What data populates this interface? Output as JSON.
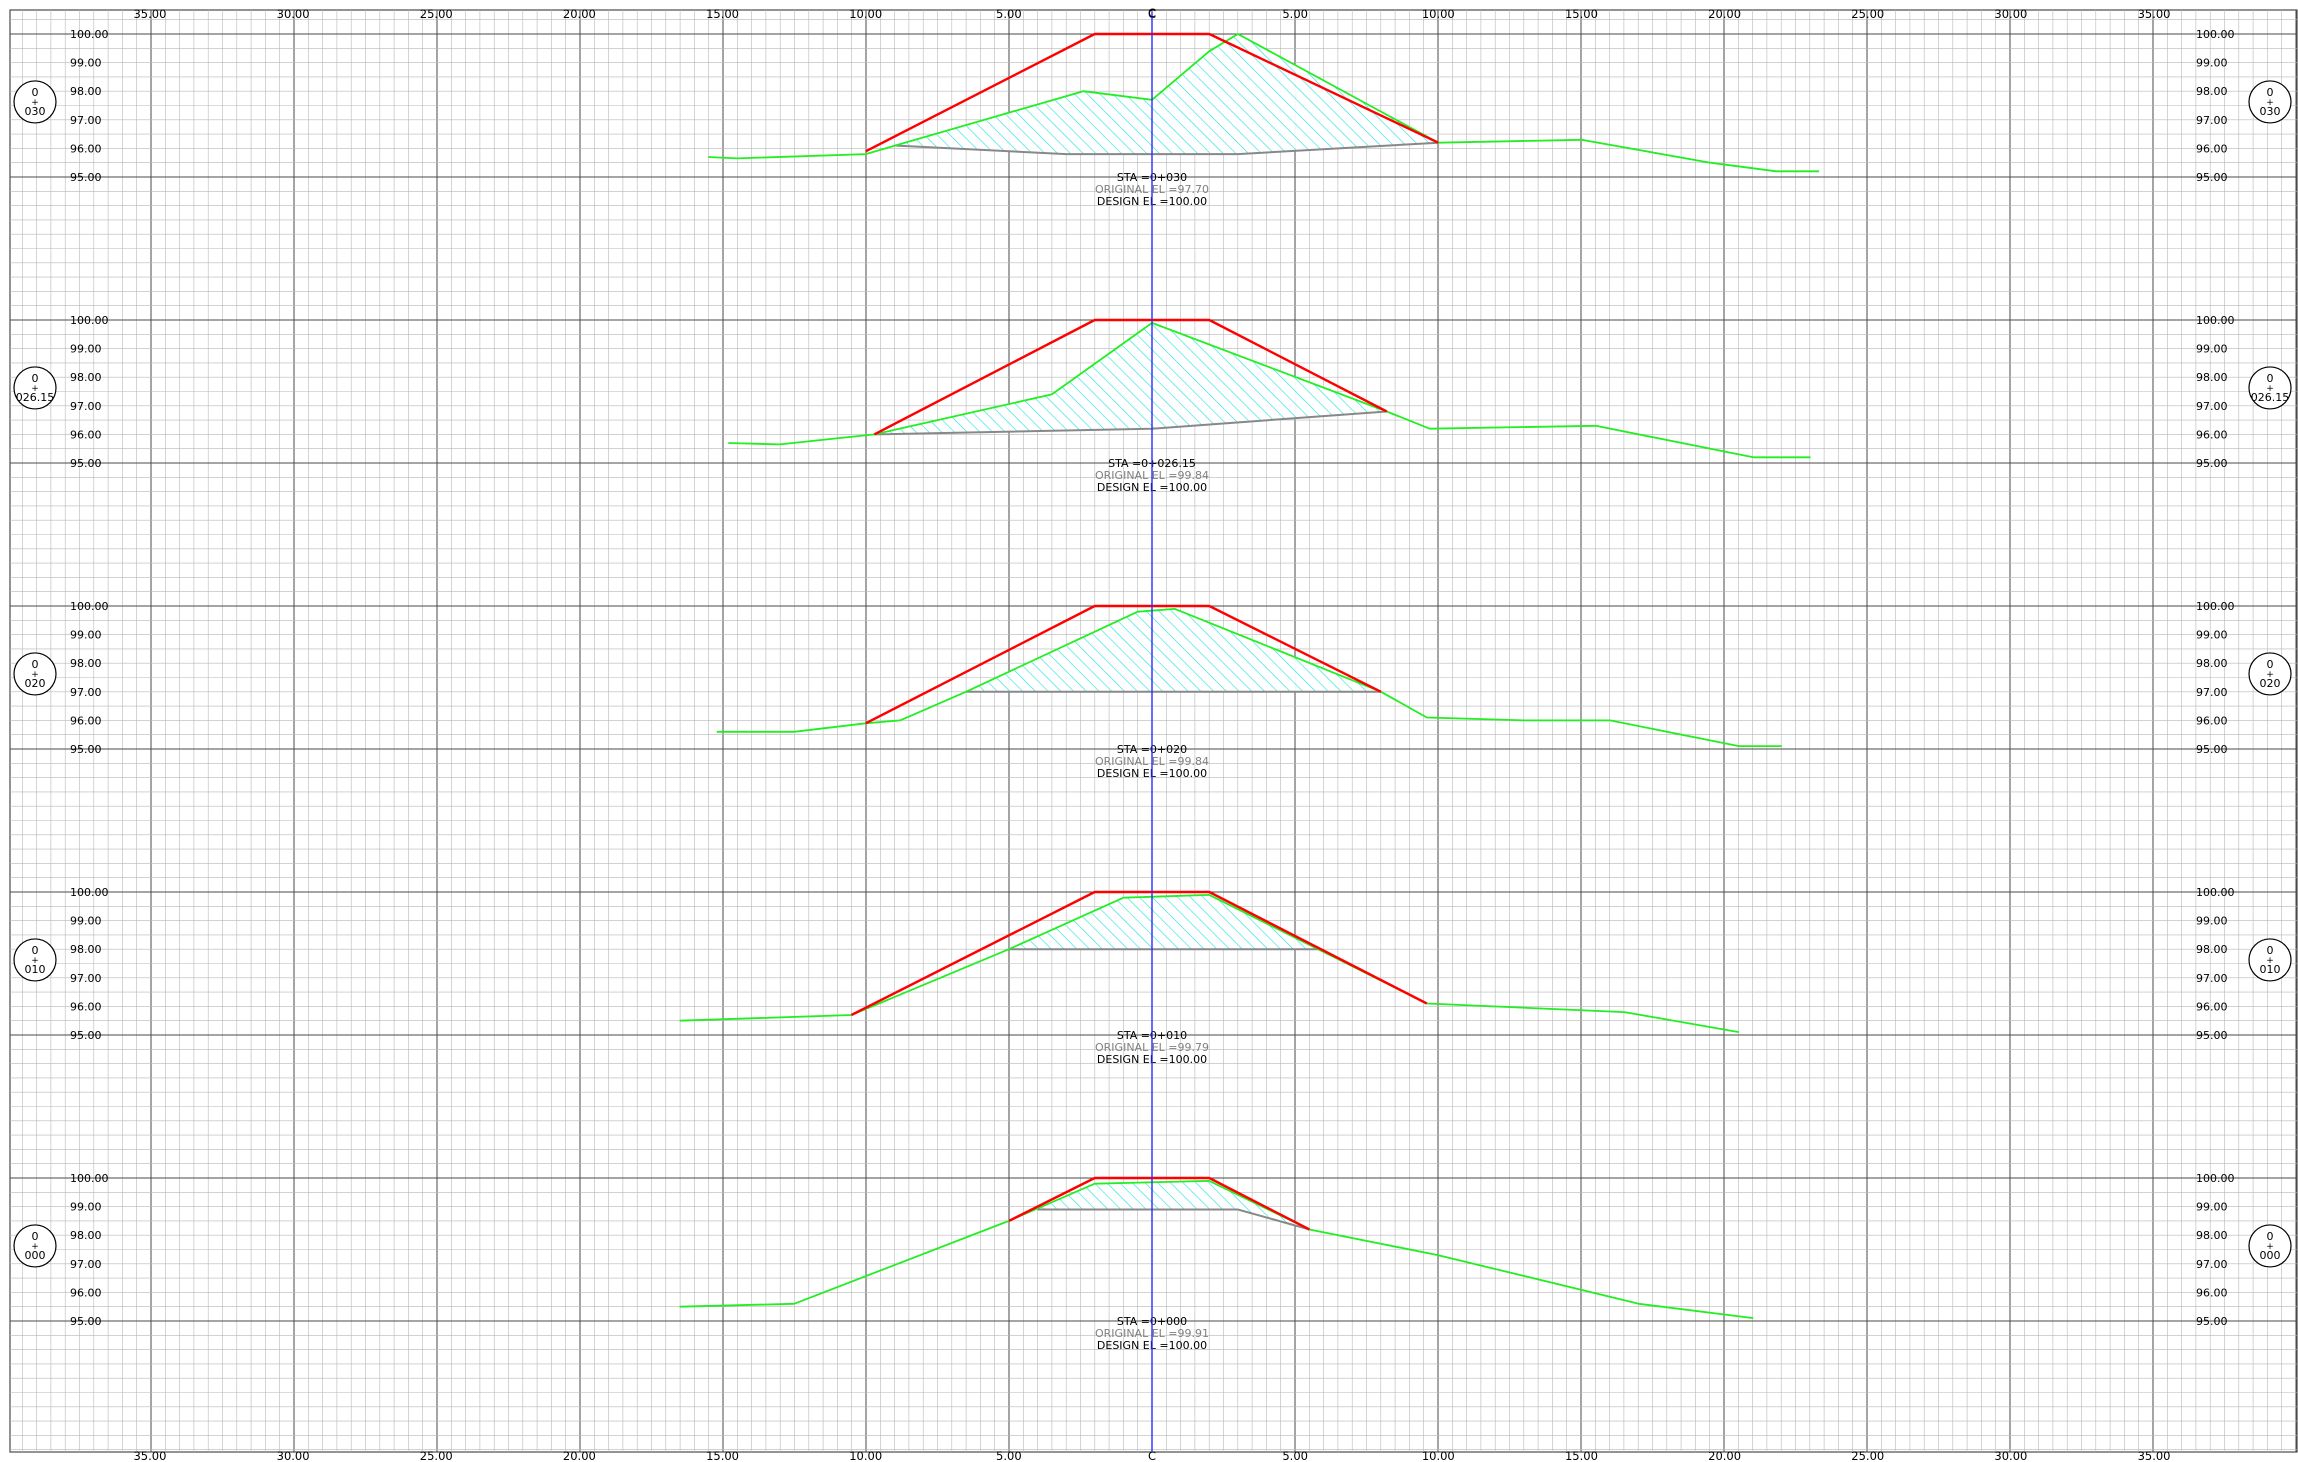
{
  "drawing": {
    "centerline_label": "C",
    "offset_labels": [
      "35.00",
      "30.00",
      "25.00",
      "20.00",
      "15.00",
      "10.00",
      "5.00",
      "C",
      "5.00",
      "10.00",
      "15.00",
      "20.00",
      "25.00",
      "30.00",
      "35.00"
    ],
    "elevation_labels": [
      "100.00",
      "99.00",
      "98.00",
      "97.00",
      "96.00",
      "95.00"
    ],
    "colors": {
      "grid_minor": "#b8b8b8",
      "grid_major": "#4a4a4a",
      "centerline": "#2b2bff",
      "design": "#ff0000",
      "existing_ground": "#22ee22",
      "fill_hatch": "#14e0e0",
      "bottom": "#888888",
      "text": "#000000",
      "original_el_text": "#808080"
    }
  },
  "sections": [
    {
      "marker_top": "0",
      "marker_mid": "+",
      "marker_bottom": "030",
      "sta_label": "STA  =0+030",
      "original_label": "ORIGINAL  EL  =97.70",
      "design_label": "DESIGN  EL  =100.00",
      "design_elevation": 100.0,
      "design_profile": [
        [
          -10.0,
          95.9
        ],
        [
          -2.0,
          100.0
        ],
        [
          2.0,
          100.0
        ],
        [
          10.0,
          96.2
        ]
      ],
      "ground_profile": [
        [
          -15.5,
          95.7
        ],
        [
          -14.5,
          95.65
        ],
        [
          -10.0,
          95.8
        ],
        [
          -2.4,
          98.0
        ],
        [
          0.0,
          97.7
        ],
        [
          2.0,
          99.4
        ],
        [
          3.0,
          100.0
        ],
        [
          10.0,
          96.2
        ],
        [
          15.0,
          96.3
        ],
        [
          19.5,
          95.5
        ],
        [
          21.8,
          95.2
        ],
        [
          23.3,
          95.2
        ]
      ],
      "fill_bottom": [
        [
          -9.0,
          96.1
        ],
        [
          -3.0,
          95.8
        ],
        [
          3.0,
          95.8
        ],
        [
          10.0,
          96.2
        ]
      ],
      "fill_top": [
        [
          -10.0,
          95.9
        ],
        [
          -9.0,
          96.1
        ],
        [
          -2.4,
          98.0
        ],
        [
          0.0,
          97.7
        ],
        [
          2.0,
          99.4
        ],
        [
          3.0,
          100.0
        ],
        [
          10.0,
          96.2
        ]
      ]
    },
    {
      "marker_top": "0",
      "marker_mid": "+",
      "marker_bottom": "026.15",
      "sta_label": "STA  =0+026.15",
      "original_label": "ORIGINAL  EL  =99.84",
      "design_label": "DESIGN  EL  =100.00",
      "design_elevation": 100.0,
      "design_profile": [
        [
          -9.7,
          96.0
        ],
        [
          -2.0,
          100.0
        ],
        [
          2.0,
          100.0
        ],
        [
          8.2,
          96.8
        ]
      ],
      "ground_profile": [
        [
          -14.8,
          95.7
        ],
        [
          -13.0,
          95.65
        ],
        [
          -9.7,
          96.0
        ],
        [
          -3.5,
          97.4
        ],
        [
          0.0,
          99.9
        ],
        [
          8.2,
          96.8
        ],
        [
          9.7,
          96.2
        ],
        [
          15.5,
          96.3
        ],
        [
          21.0,
          95.2
        ],
        [
          23.0,
          95.2
        ]
      ],
      "fill_bottom": [
        [
          -9.7,
          96.0
        ],
        [
          0.0,
          96.2
        ],
        [
          8.2,
          96.8
        ]
      ],
      "fill_top": [
        [
          -9.7,
          96.0
        ],
        [
          -3.5,
          97.4
        ],
        [
          0.0,
          99.9
        ],
        [
          8.2,
          96.8
        ]
      ]
    },
    {
      "marker_top": "0",
      "marker_mid": "+",
      "marker_bottom": "020",
      "sta_label": "STA  =0+020",
      "original_label": "ORIGINAL  EL  =99.84",
      "design_label": "DESIGN  EL  =100.00",
      "design_elevation": 100.0,
      "design_profile": [
        [
          -10.0,
          95.9
        ],
        [
          -2.0,
          100.0
        ],
        [
          2.0,
          100.0
        ],
        [
          8.0,
          97.0
        ]
      ],
      "ground_profile": [
        [
          -15.2,
          95.6
        ],
        [
          -12.5,
          95.6
        ],
        [
          -10.0,
          95.9
        ],
        [
          -8.8,
          96.0
        ],
        [
          -6.5,
          97.0
        ],
        [
          -0.5,
          99.8
        ],
        [
          0.8,
          99.9
        ],
        [
          8.0,
          97.0
        ],
        [
          9.6,
          96.1
        ],
        [
          13.0,
          96.0
        ],
        [
          16.0,
          96.0
        ],
        [
          20.5,
          95.1
        ],
        [
          22.0,
          95.1
        ]
      ],
      "fill_bottom": [
        [
          -6.5,
          97.0
        ],
        [
          8.0,
          97.0
        ]
      ],
      "fill_top": [
        [
          -6.5,
          97.0
        ],
        [
          -0.5,
          99.8
        ],
        [
          0.8,
          99.9
        ],
        [
          8.0,
          97.0
        ]
      ]
    },
    {
      "marker_top": "0",
      "marker_mid": "+",
      "marker_bottom": "010",
      "sta_label": "STA  =0+010",
      "original_label": "ORIGINAL  EL  =99.79",
      "design_label": "DESIGN  EL  =100.00",
      "design_elevation": 100.0,
      "design_profile": [
        [
          -10.5,
          95.7
        ],
        [
          -2.0,
          100.0
        ],
        [
          2.0,
          100.0
        ],
        [
          9.6,
          96.1
        ]
      ],
      "ground_profile": [
        [
          -16.5,
          95.5
        ],
        [
          -10.5,
          95.7
        ],
        [
          -5.0,
          98.0
        ],
        [
          -1.0,
          99.8
        ],
        [
          2.0,
          99.9
        ],
        [
          5.8,
          98.0
        ],
        [
          9.6,
          96.1
        ],
        [
          16.5,
          95.8
        ],
        [
          20.5,
          95.1
        ]
      ],
      "fill_bottom": [
        [
          -5.0,
          98.0
        ],
        [
          5.8,
          98.0
        ]
      ],
      "fill_top": [
        [
          -5.0,
          98.0
        ],
        [
          -1.0,
          99.8
        ],
        [
          2.0,
          99.9
        ],
        [
          5.8,
          98.0
        ]
      ]
    },
    {
      "marker_top": "0",
      "marker_mid": "+",
      "marker_bottom": "000",
      "sta_label": "STA  =0+000",
      "original_label": "ORIGINAL  EL  =99.91",
      "design_label": "DESIGN  EL  =100.00",
      "design_elevation": 100.0,
      "design_profile": [
        [
          -5.0,
          98.5
        ],
        [
          -2.0,
          100.0
        ],
        [
          2.0,
          100.0
        ],
        [
          5.5,
          98.2
        ]
      ],
      "ground_profile": [
        [
          -16.5,
          95.5
        ],
        [
          -12.5,
          95.6
        ],
        [
          -5.0,
          98.5
        ],
        [
          -2.0,
          99.8
        ],
        [
          2.0,
          99.9
        ],
        [
          5.5,
          98.2
        ],
        [
          10.0,
          97.3
        ],
        [
          17.0,
          95.6
        ],
        [
          21.0,
          95.1
        ]
      ],
      "fill_bottom": [
        [
          -4.0,
          98.9
        ],
        [
          3.0,
          98.9
        ],
        [
          5.5,
          98.2
        ]
      ],
      "fill_top": [
        [
          -4.0,
          98.9
        ],
        [
          -2.0,
          99.8
        ],
        [
          2.0,
          99.9
        ],
        [
          5.5,
          98.2
        ]
      ]
    }
  ]
}
